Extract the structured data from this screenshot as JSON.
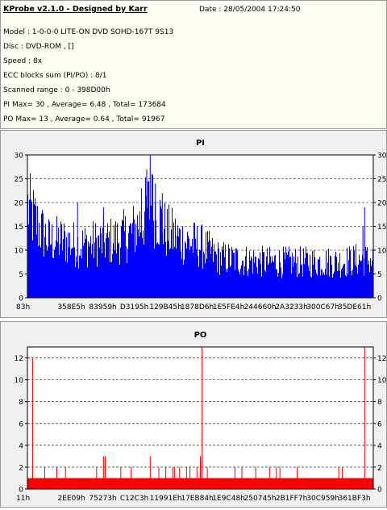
{
  "header": {
    "title": "KProbe v2.1.0 - Designed by Karr",
    "date": "Date : 28/05/2004 17:24:50",
    "lines": [
      "Model : 1-0-0-0 LITE-ON DVD SOHD-167T    9S13",
      "Disc : DVD-ROM ,  []",
      "Speed : 8x",
      "ECC blocks sum (PI/PO) : 8/1",
      "Scanned range : 0 - 398D00h",
      "PI Max= 30 , Average= 6.48 , Total= 173684",
      "PO Max= 13 , Average= 0.64 , Total= 91967"
    ]
  },
  "chart_data": [
    {
      "type": "bar",
      "title": "PI",
      "color": "#0000ff",
      "ylim": [
        0,
        30
      ],
      "yticks": [
        0,
        5,
        10,
        15,
        20,
        25,
        30
      ],
      "xtick_labels": [
        "83h",
        "358E5h",
        "83959h",
        "D3195h",
        "129B45h",
        "1878D6h",
        "1E5FE4h",
        "244660h",
        "2A3233h",
        "300C67h",
        "35DE61h"
      ],
      "grid": "dashed horizontal",
      "series_profile": {
        "x_start": "83h",
        "x_end": "398D00h",
        "max": 30,
        "average": 6.48,
        "points": [
          [
            0.0,
            19
          ],
          [
            0.03,
            15
          ],
          [
            0.06,
            12
          ],
          [
            0.1,
            12
          ],
          [
            0.15,
            11
          ],
          [
            0.2,
            11.5
          ],
          [
            0.25,
            12
          ],
          [
            0.3,
            13.5
          ],
          [
            0.33,
            16
          ],
          [
            0.355,
            20
          ],
          [
            0.38,
            17
          ],
          [
            0.4,
            14
          ],
          [
            0.45,
            12
          ],
          [
            0.5,
            11
          ],
          [
            0.55,
            8.5
          ],
          [
            0.6,
            8
          ],
          [
            0.7,
            7.5
          ],
          [
            0.8,
            7.5
          ],
          [
            0.9,
            7.5
          ],
          [
            0.96,
            8
          ],
          [
            1.0,
            8
          ]
        ],
        "spikes": [
          [
            0.355,
            30
          ],
          [
            0.345,
            27
          ],
          [
            0.36,
            26
          ],
          [
            0.37,
            24
          ],
          [
            0.33,
            23
          ],
          [
            0.145,
            20
          ],
          [
            0.22,
            19
          ],
          [
            0.975,
            19
          ],
          [
            0.97,
            15
          ],
          [
            0.39,
            22
          ]
        ]
      }
    },
    {
      "type": "bar",
      "title": "PO",
      "color": "#ff0000",
      "ylim": [
        0,
        13
      ],
      "yticks": [
        0,
        2,
        4,
        6,
        8,
        10,
        12
      ],
      "xtick_labels": [
        "11h",
        "2EE09h",
        "75273h",
        "C12C3h",
        "11991Eh",
        "17EB84h",
        "1E9C48h",
        "250745h",
        "2B1FF7h",
        "30C959h",
        "361BF3h"
      ],
      "grid": "dashed horizontal",
      "series_profile": {
        "x_start": "11h",
        "x_end": "398D00h",
        "max": 13,
        "average": 0.64,
        "base": 1,
        "spikes": [
          [
            0.015,
            12
          ],
          [
            0.05,
            2
          ],
          [
            0.085,
            2
          ],
          [
            0.11,
            2
          ],
          [
            0.2,
            2
          ],
          [
            0.22,
            3
          ],
          [
            0.225,
            3
          ],
          [
            0.27,
            2
          ],
          [
            0.3,
            2
          ],
          [
            0.355,
            3
          ],
          [
            0.38,
            2
          ],
          [
            0.4,
            2
          ],
          [
            0.42,
            2
          ],
          [
            0.425,
            2
          ],
          [
            0.44,
            2
          ],
          [
            0.46,
            2
          ],
          [
            0.47,
            2
          ],
          [
            0.49,
            2
          ],
          [
            0.5,
            3
          ],
          [
            0.505,
            13
          ],
          [
            0.52,
            2
          ],
          [
            0.6,
            2
          ],
          [
            0.62,
            2
          ],
          [
            0.66,
            2
          ],
          [
            0.7,
            2
          ],
          [
            0.72,
            2
          ],
          [
            0.73,
            2
          ],
          [
            0.78,
            2
          ],
          [
            0.9,
            2
          ],
          [
            0.91,
            2
          ],
          [
            0.975,
            13
          ]
        ]
      }
    }
  ]
}
